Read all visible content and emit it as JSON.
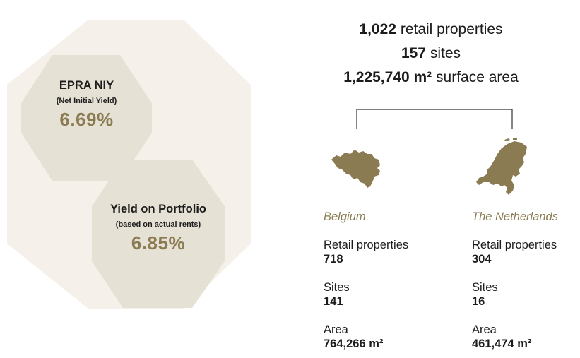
{
  "colors": {
    "gold": "#8b7b52",
    "hex_light": "#f5f1ea",
    "hex_dark": "#e6e1d5",
    "text": "#1c1c1c"
  },
  "yields": {
    "epra": {
      "title": "EPRA NIY",
      "subtitle": "(Net Initial Yield)",
      "value": "6.69%"
    },
    "portfolio": {
      "title": "Yield on Portfolio",
      "subtitle": "(based on actual rents)",
      "value": "6.85%"
    }
  },
  "summary": {
    "properties_count": "1,022",
    "properties_label": "retail properties",
    "sites_count": "157",
    "sites_label": "sites",
    "area_value": "1,225,740 m²",
    "area_label": "surface area"
  },
  "countries": [
    {
      "name": "Belgium",
      "map_icon": "belgium-map-icon",
      "retail_label": "Retail properties",
      "retail_value": "718",
      "sites_label": "Sites",
      "sites_value": "141",
      "area_label": "Area",
      "area_value": "764,266 m²"
    },
    {
      "name": "The Netherlands",
      "map_icon": "netherlands-map-icon",
      "retail_label": "Retail properties",
      "retail_value": "304",
      "sites_label": "Sites",
      "sites_value": "16",
      "area_label": "Area",
      "area_value": "461,474 m²"
    }
  ]
}
